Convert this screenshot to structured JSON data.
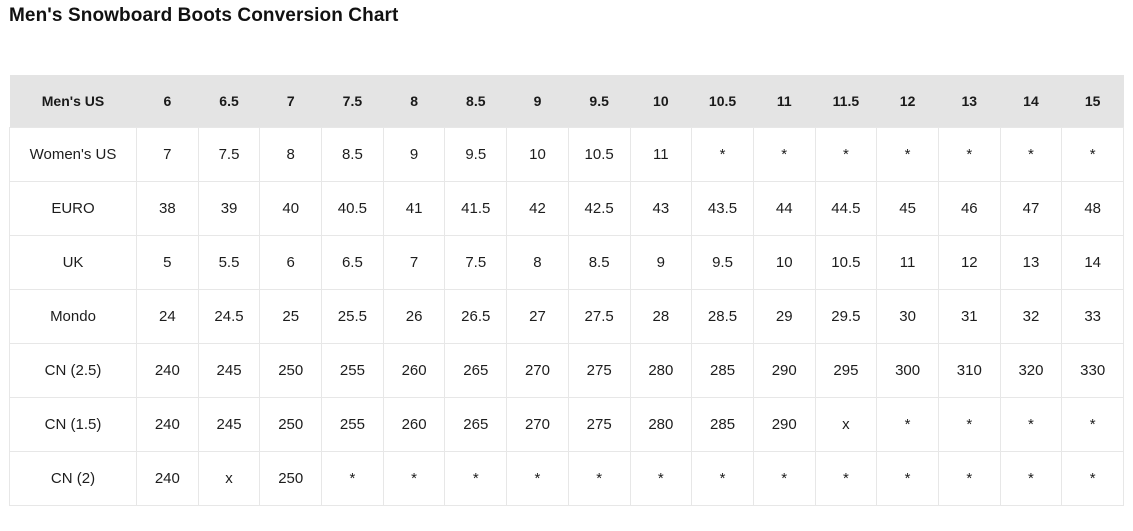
{
  "page": {
    "title": "Men's Snowboard Boots Conversion Chart"
  },
  "colors": {
    "header_background": "#e4e4e4",
    "cell_border": "#e7e7e7",
    "text": "#1d1d1d"
  },
  "chart_data": {
    "type": "table",
    "title": "Men's Snowboard Boots Conversion Chart",
    "header": [
      "Men's US",
      "6",
      "6.5",
      "7",
      "7.5",
      "8",
      "8.5",
      "9",
      "9.5",
      "10",
      "10.5",
      "11",
      "11.5",
      "12",
      "13",
      "14",
      "15"
    ],
    "rows": [
      {
        "label": "Women's US",
        "values": [
          "7",
          "7.5",
          "8",
          "8.5",
          "9",
          "9.5",
          "10",
          "10.5",
          "11",
          "*",
          "*",
          "*",
          "*",
          "*",
          "*",
          "*"
        ]
      },
      {
        "label": "EURO",
        "values": [
          "38",
          "39",
          "40",
          "40.5",
          "41",
          "41.5",
          "42",
          "42.5",
          "43",
          "43.5",
          "44",
          "44.5",
          "45",
          "46",
          "47",
          "48"
        ]
      },
      {
        "label": "UK",
        "values": [
          "5",
          "5.5",
          "6",
          "6.5",
          "7",
          "7.5",
          "8",
          "8.5",
          "9",
          "9.5",
          "10",
          "10.5",
          "11",
          "12",
          "13",
          "14"
        ]
      },
      {
        "label": "Mondo",
        "values": [
          "24",
          "24.5",
          "25",
          "25.5",
          "26",
          "26.5",
          "27",
          "27.5",
          "28",
          "28.5",
          "29",
          "29.5",
          "30",
          "31",
          "32",
          "33"
        ]
      },
      {
        "label": "CN (2.5)",
        "values": [
          "240",
          "245",
          "250",
          "255",
          "260",
          "265",
          "270",
          "275",
          "280",
          "285",
          "290",
          "295",
          "300",
          "310",
          "320",
          "330"
        ]
      },
      {
        "label": "CN (1.5)",
        "values": [
          "240",
          "245",
          "250",
          "255",
          "260",
          "265",
          "270",
          "275",
          "280",
          "285",
          "290",
          "x",
          "*",
          "*",
          "*",
          "*"
        ]
      },
      {
        "label": "CN (2)",
        "values": [
          "240",
          "x",
          "250",
          "*",
          "*",
          "*",
          "*",
          "*",
          "*",
          "*",
          "*",
          "*",
          "*",
          "*",
          "*",
          "*"
        ]
      }
    ]
  }
}
